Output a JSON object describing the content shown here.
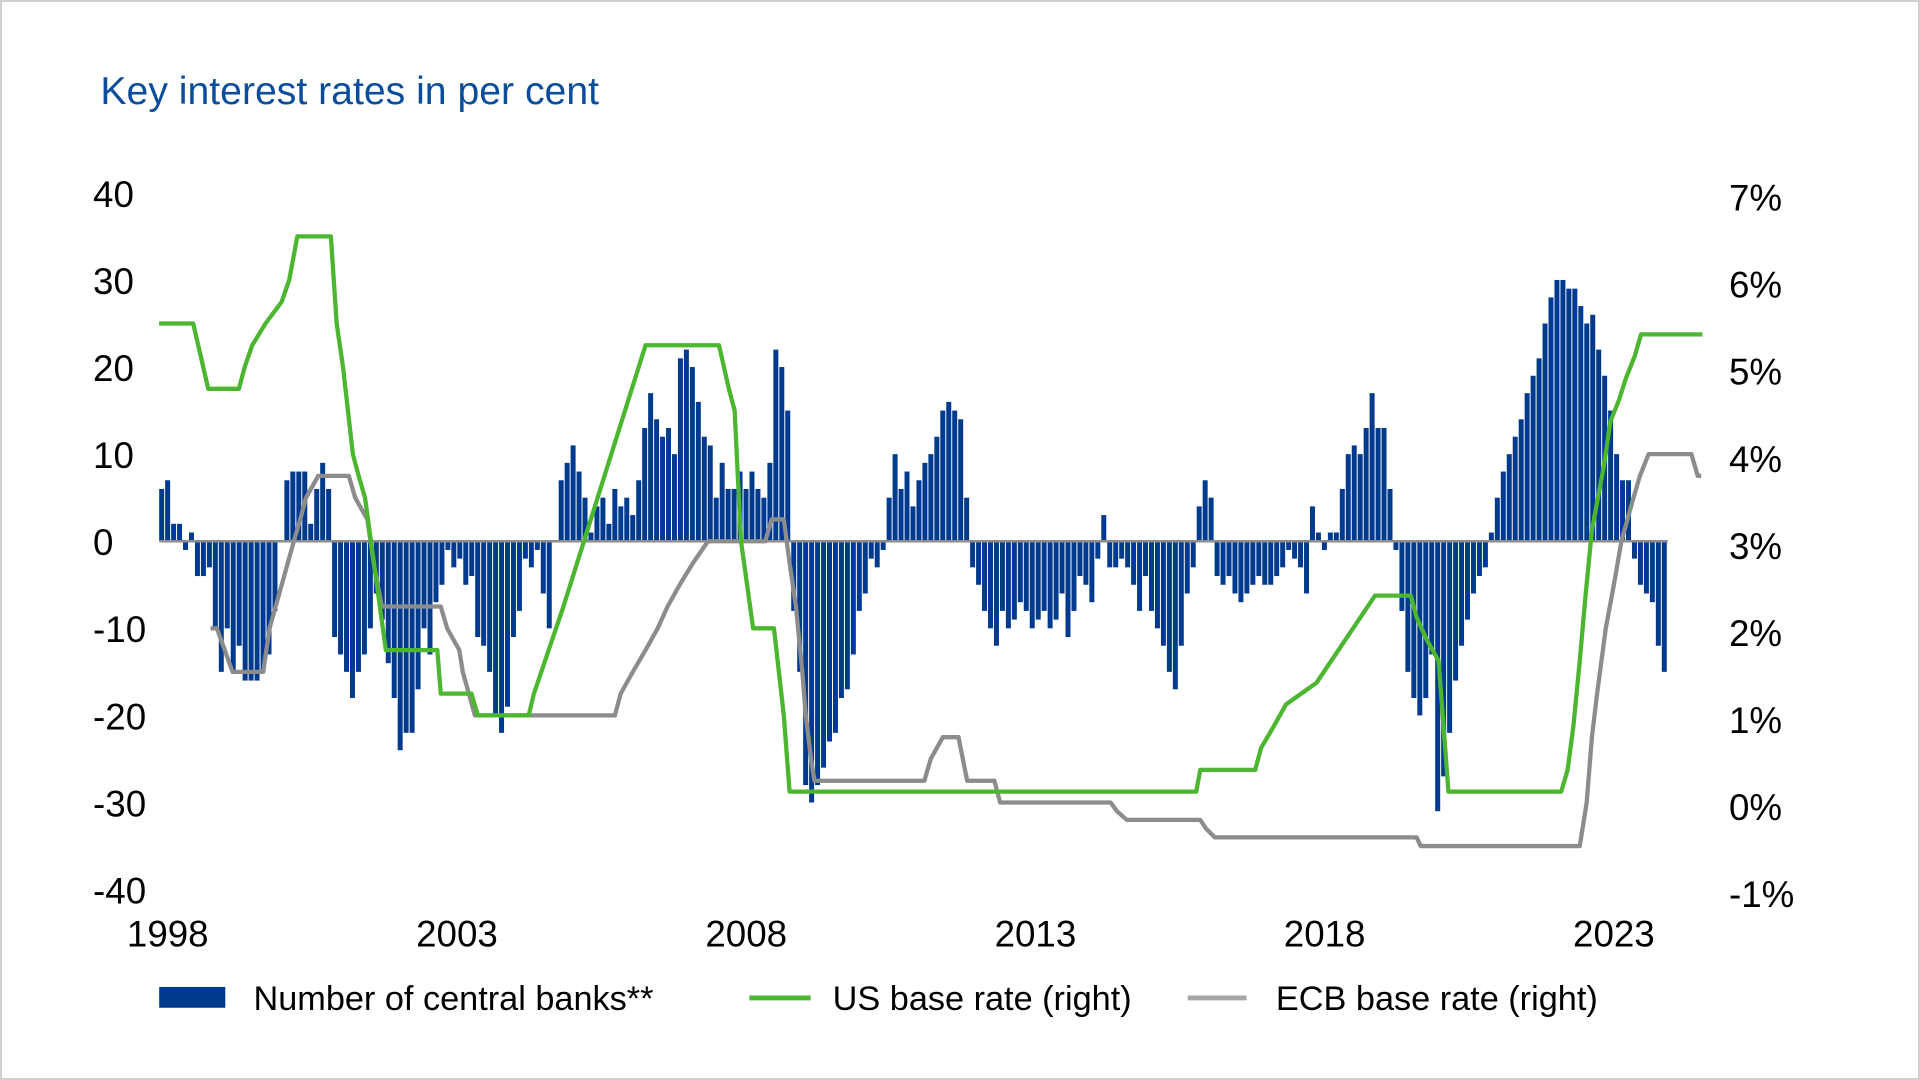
{
  "chart_data": {
    "type": "bar+line",
    "title": "Key interest rates in per cent",
    "left_axis": {
      "ylim": [
        -40,
        40
      ],
      "ticks": [
        "40",
        "30",
        "20",
        "10",
        "0",
        "-10",
        "-20",
        "-30",
        "-40"
      ]
    },
    "right_axis": {
      "ylim": [
        -1,
        7
      ],
      "ticks": [
        "7%",
        "6%",
        "5%",
        "4%",
        "3%",
        "2%",
        "1%",
        "0%",
        "-1%"
      ]
    },
    "x_axis": {
      "ticks": [
        "1998",
        "2003",
        "2008",
        "2013",
        "2018",
        "2023"
      ],
      "tick_values": [
        1998,
        2003,
        2008,
        2013,
        2018,
        2023
      ]
    },
    "grid": false,
    "legend_placement": "bottom",
    "colors": {
      "bars": "#003a8f",
      "us": "#4cb630",
      "ecb": "#8c8c8c",
      "title": "#0b4d9b",
      "zero_line": "#8c8c8c"
    },
    "series": [
      {
        "name": "Number of central banks**",
        "kind": "bar",
        "axis": "left",
        "values": [
          6,
          7,
          2,
          2,
          -1,
          1,
          -4,
          -4,
          -3,
          -10,
          -15,
          -10,
          -15,
          -12,
          -16,
          -16,
          -16,
          -15,
          -13,
          -8,
          0,
          7,
          8,
          8,
          8,
          2,
          6,
          9,
          6,
          -11,
          -13,
          -15,
          -18,
          -15,
          -13,
          -10,
          -6,
          -9,
          -14,
          -18,
          -24,
          -22,
          -22,
          -17,
          -10,
          -13,
          -7,
          -5,
          -1,
          -3,
          -2,
          -5,
          -4,
          -11,
          -12,
          -15,
          -20,
          -22,
          -19,
          -11,
          -8,
          -2,
          -3,
          -1,
          -6,
          -10,
          0,
          7,
          9,
          11,
          8,
          5,
          1,
          4,
          5,
          2,
          6,
          4,
          5,
          3,
          7,
          13,
          17,
          14,
          12,
          13,
          10,
          21,
          22,
          20,
          16,
          12,
          11,
          5,
          9,
          6,
          6,
          8,
          6,
          8,
          6,
          5,
          9,
          22,
          20,
          15,
          -8,
          -15,
          -28,
          -30,
          -28,
          -26,
          -23,
          -22,
          -18,
          -17,
          -13,
          -8,
          -6,
          -2,
          -3,
          -1,
          5,
          10,
          6,
          8,
          4,
          7,
          9,
          10,
          12,
          15,
          16,
          15,
          14,
          5,
          -3,
          -5,
          -8,
          -10,
          -12,
          -8,
          -10,
          -9,
          -7,
          -8,
          -10,
          -9,
          -8,
          -10,
          -9,
          -6,
          -11,
          -8,
          -4,
          -5,
          -7,
          -2,
          3,
          -3,
          -3,
          -2,
          -3,
          -5,
          -8,
          -4,
          -8,
          -10,
          -12,
          -15,
          -17,
          -12,
          -6,
          -3,
          4,
          7,
          5,
          -4,
          -5,
          -4,
          -6,
          -7,
          -6,
          -5,
          -4,
          -5,
          -5,
          -4,
          -3,
          -1,
          -2,
          -3,
          -6,
          4,
          1,
          -1,
          1,
          1,
          6,
          10,
          11,
          10,
          13,
          17,
          13,
          13,
          6,
          -1,
          -8,
          -15,
          -18,
          -20,
          -18,
          -13,
          -31,
          -27,
          -22,
          -16,
          -12,
          -9,
          -6,
          -4,
          -3,
          1,
          5,
          8,
          10,
          12,
          14,
          17,
          19,
          21,
          25,
          28,
          30,
          30,
          29,
          29,
          27,
          25,
          26,
          22,
          19,
          15,
          10,
          7,
          7,
          -2,
          -5,
          -6,
          -7,
          -12,
          -15
        ]
      },
      {
        "name": "US base rate (right)",
        "kind": "line",
        "axis": "right",
        "points": [
          [
            1997.85,
            5.5
          ],
          [
            1998.44,
            5.5
          ],
          [
            1998.7,
            4.75
          ],
          [
            1999.23,
            4.75
          ],
          [
            1999.33,
            5.0
          ],
          [
            1999.46,
            5.25
          ],
          [
            1999.69,
            5.5
          ],
          [
            1999.97,
            5.75
          ],
          [
            2000.1,
            6.0
          ],
          [
            2000.24,
            6.5
          ],
          [
            2000.82,
            6.5
          ],
          [
            2000.92,
            5.5
          ],
          [
            2001.03,
            5.0
          ],
          [
            2001.2,
            4.0
          ],
          [
            2001.3,
            3.75
          ],
          [
            2001.41,
            3.5
          ],
          [
            2001.77,
            1.75
          ],
          [
            2002.66,
            1.75
          ],
          [
            2002.72,
            1.25
          ],
          [
            2003.25,
            1.25
          ],
          [
            2003.36,
            1.0
          ],
          [
            2004.24,
            1.0
          ],
          [
            2004.33,
            1.25
          ],
          [
            2004.84,
            2.25
          ],
          [
            2006.26,
            5.25
          ],
          [
            2007.53,
            5.25
          ],
          [
            2007.7,
            4.75
          ],
          [
            2007.8,
            4.5
          ],
          [
            2007.91,
            3.0
          ],
          [
            2008.12,
            2.0
          ],
          [
            2008.48,
            2.0
          ],
          [
            2008.65,
            1.0
          ],
          [
            2008.75,
            0.125
          ],
          [
            2015.78,
            0.125
          ],
          [
            2015.85,
            0.375
          ],
          [
            2016.8,
            0.375
          ],
          [
            2016.9,
            0.625
          ],
          [
            2017.12,
            0.875
          ],
          [
            2017.33,
            1.125
          ],
          [
            2017.86,
            1.375
          ],
          [
            2018.87,
            2.375
          ],
          [
            2019.49,
            2.375
          ],
          [
            2019.59,
            2.125
          ],
          [
            2019.76,
            1.875
          ],
          [
            2019.97,
            1.625
          ],
          [
            2020.14,
            0.125
          ],
          [
            2022.09,
            0.125
          ],
          [
            2022.2,
            0.375
          ],
          [
            2022.3,
            0.875
          ],
          [
            2022.41,
            1.625
          ],
          [
            2022.51,
            2.375
          ],
          [
            2022.62,
            3.125
          ],
          [
            2022.83,
            3.875
          ],
          [
            2022.94,
            4.375
          ],
          [
            2023.09,
            4.625
          ],
          [
            2023.21,
            4.875
          ],
          [
            2023.36,
            5.125
          ],
          [
            2023.47,
            5.375
          ],
          [
            2024.53,
            5.375
          ]
        ]
      },
      {
        "name": "ECB base rate (right)",
        "kind": "line",
        "axis": "right",
        "points": [
          [
            1998.74,
            2.0
          ],
          [
            1998.85,
            2.0
          ],
          [
            1999.12,
            1.5
          ],
          [
            1999.65,
            1.5
          ],
          [
            1999.76,
            2.0
          ],
          [
            1999.97,
            2.5
          ],
          [
            2000.18,
            3.0
          ],
          [
            2000.29,
            3.25
          ],
          [
            2000.39,
            3.5
          ],
          [
            2000.6,
            3.75
          ],
          [
            2001.13,
            3.75
          ],
          [
            2001.24,
            3.5
          ],
          [
            2001.45,
            3.25
          ],
          [
            2001.56,
            2.75
          ],
          [
            2001.7,
            2.25
          ],
          [
            2002.72,
            2.25
          ],
          [
            2002.83,
            2.0
          ],
          [
            2003.04,
            1.75
          ],
          [
            2003.1,
            1.5
          ],
          [
            2003.31,
            1.0
          ],
          [
            2005.73,
            1.0
          ],
          [
            2005.83,
            1.25
          ],
          [
            2006.04,
            1.5
          ],
          [
            2006.26,
            1.75
          ],
          [
            2006.47,
            2.0
          ],
          [
            2006.64,
            2.25
          ],
          [
            2006.85,
            2.5
          ],
          [
            2007.08,
            2.75
          ],
          [
            2007.34,
            3.0
          ],
          [
            2008.33,
            3.0
          ],
          [
            2008.44,
            3.25
          ],
          [
            2008.65,
            3.25
          ],
          [
            2008.75,
            2.75
          ],
          [
            2008.86,
            2.25
          ],
          [
            2008.97,
            1.5
          ],
          [
            2009.03,
            1.0
          ],
          [
            2009.12,
            0.5
          ],
          [
            2009.18,
            0.25
          ],
          [
            2011.08,
            0.25
          ],
          [
            2011.19,
            0.5
          ],
          [
            2011.4,
            0.75
          ],
          [
            2011.67,
            0.75
          ],
          [
            2011.82,
            0.25
          ],
          [
            2012.29,
            0.25
          ],
          [
            2012.39,
            0.0
          ],
          [
            2014.3,
            0.0
          ],
          [
            2014.41,
            -0.1
          ],
          [
            2014.58,
            -0.2
          ],
          [
            2015.85,
            -0.2
          ],
          [
            2015.95,
            -0.3
          ],
          [
            2016.1,
            -0.4
          ],
          [
            2019.59,
            -0.4
          ],
          [
            2019.66,
            -0.5
          ],
          [
            2022.41,
            -0.5
          ],
          [
            2022.53,
            0.0
          ],
          [
            2022.62,
            0.75
          ],
          [
            2022.71,
            1.25
          ],
          [
            2022.86,
            2.0
          ],
          [
            2023.0,
            2.5
          ],
          [
            2023.13,
            3.0
          ],
          [
            2023.34,
            3.5
          ],
          [
            2023.45,
            3.75
          ],
          [
            2023.6,
            4.0
          ],
          [
            2024.34,
            4.0
          ],
          [
            2024.45,
            3.75
          ],
          [
            2024.51,
            3.75
          ]
        ]
      }
    ],
    "legend": [
      "Number of central banks**",
      "US base rate (right)",
      "ECB base rate (right)"
    ]
  }
}
